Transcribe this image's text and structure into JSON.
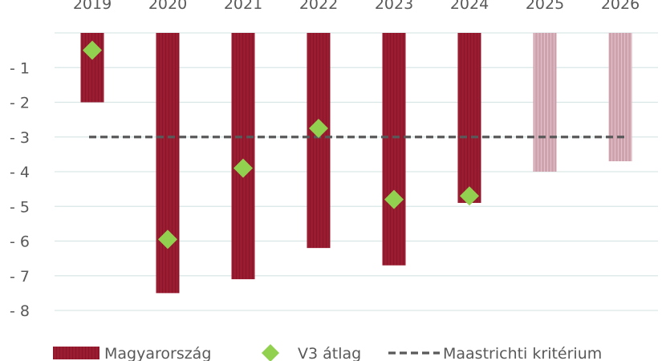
{
  "chart_data": {
    "type": "bar",
    "categories": [
      "2019",
      "2020",
      "2021",
      "2022",
      "2023",
      "2024",
      "2025",
      "2026"
    ],
    "series": [
      {
        "name": "Magyarország",
        "kind": "bar",
        "values": [
          -2.0,
          -7.5,
          -7.1,
          -6.2,
          -6.7,
          -4.9,
          -4.0,
          -3.7
        ],
        "color": "#9B1B30",
        "forecast_color": "#CFA3AE",
        "forecast_from": "2025"
      },
      {
        "name": "V3 átlag",
        "kind": "marker",
        "values": [
          -0.5,
          -5.95,
          -3.9,
          -2.75,
          -4.8,
          -4.7,
          null,
          null
        ],
        "color": "#92D050",
        "marker": "diamond"
      },
      {
        "name": "Maastrichti kritérium",
        "kind": "dashed-line",
        "value": -3,
        "color": "#595959"
      }
    ],
    "yticks": [
      0,
      -1,
      -2,
      -3,
      -4,
      -5,
      -6,
      -7,
      -8
    ],
    "ytick_labels": [
      "",
      "- 1",
      "- 2",
      "- 3",
      "- 4",
      "- 5",
      "- 6",
      "- 7",
      "- 8"
    ],
    "ylim": [
      -8,
      0
    ],
    "grid": true,
    "grid_color": "#D9E6E6",
    "legend_position": "bottom",
    "category_axis_position": "top"
  }
}
